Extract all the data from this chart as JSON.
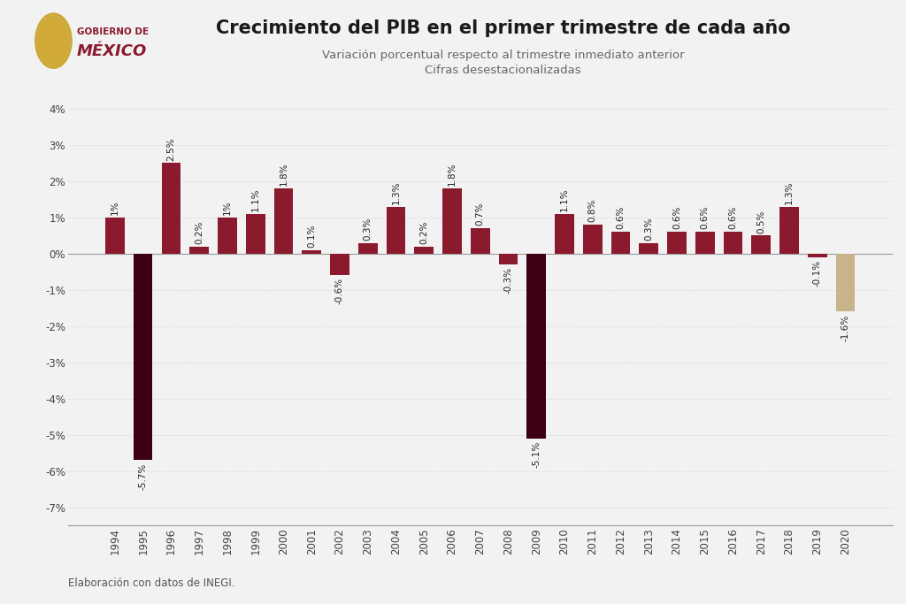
{
  "years": [
    1994,
    1995,
    1996,
    1997,
    1998,
    1999,
    2000,
    2001,
    2002,
    2003,
    2004,
    2005,
    2006,
    2007,
    2008,
    2009,
    2010,
    2011,
    2012,
    2013,
    2014,
    2015,
    2016,
    2017,
    2018,
    2019,
    2020
  ],
  "values": [
    1.0,
    -5.7,
    2.5,
    0.2,
    1.0,
    1.1,
    1.8,
    0.1,
    -0.6,
    0.3,
    1.3,
    0.2,
    1.8,
    0.7,
    -0.3,
    -5.1,
    1.1,
    0.8,
    0.6,
    0.3,
    0.6,
    0.6,
    0.6,
    0.5,
    1.3,
    -0.1,
    -1.6
  ],
  "labels": [
    "1%",
    "-5.7%",
    "2.5%",
    "0.2%",
    "1%",
    "1.1%",
    "1.8%",
    "0.1%",
    "-0.6%",
    "0.3%",
    "1.3%",
    "0.2%",
    "1.8%",
    "0.7%",
    "-0.3%",
    "-5.1%",
    "1.1%",
    "0.8%",
    "0.6%",
    "0.3%",
    "0.6%",
    "0.6%",
    "0.6%",
    "0.5%",
    "1.3%",
    "-0.1%",
    "-1.6%"
  ],
  "bar_colors": [
    "#8B1A2E",
    "#3D0012",
    "#8B1A2E",
    "#8B1A2E",
    "#8B1A2E",
    "#8B1A2E",
    "#8B1A2E",
    "#8B1A2E",
    "#8B1A2E",
    "#8B1A2E",
    "#8B1A2E",
    "#8B1A2E",
    "#8B1A2E",
    "#8B1A2E",
    "#8B1A2E",
    "#3D0012",
    "#8B1A2E",
    "#8B1A2E",
    "#8B1A2E",
    "#8B1A2E",
    "#8B1A2E",
    "#8B1A2E",
    "#8B1A2E",
    "#8B1A2E",
    "#8B1A2E",
    "#8B1A2E",
    "#C8B48A"
  ],
  "title": "Crecimiento del PIB en el primer trimestre de cada año",
  "subtitle1": "Variación porcentual respecto al trimestre inmediato anterior",
  "subtitle2": "Cifras desestacionalizadas",
  "footnote": "Elaboración con datos de INEGI.",
  "ylim": [
    -7.5,
    4.5
  ],
  "yticks": [
    -7,
    -6,
    -5,
    -4,
    -3,
    -2,
    -1,
    0,
    1,
    2,
    3,
    4
  ],
  "ytick_labels": [
    "-7%",
    "-6%",
    "-5%",
    "-4%",
    "-3%",
    "-2%",
    "-1%",
    "0%",
    "1%",
    "2%",
    "3%",
    "4%"
  ],
  "bg_color": "#F2F2F2",
  "title_color": "#1A1A1A",
  "subtitle_color": "#666666",
  "grid_color": "#CCCCCC",
  "label_fontsize": 7.5,
  "title_fontsize": 15,
  "subtitle_fontsize": 9.5,
  "axis_fontsize": 8.5,
  "logo_text_small": "GOBIERNO DE",
  "logo_text_big": "MÉXICO",
  "logo_color": "#8B1A2E"
}
